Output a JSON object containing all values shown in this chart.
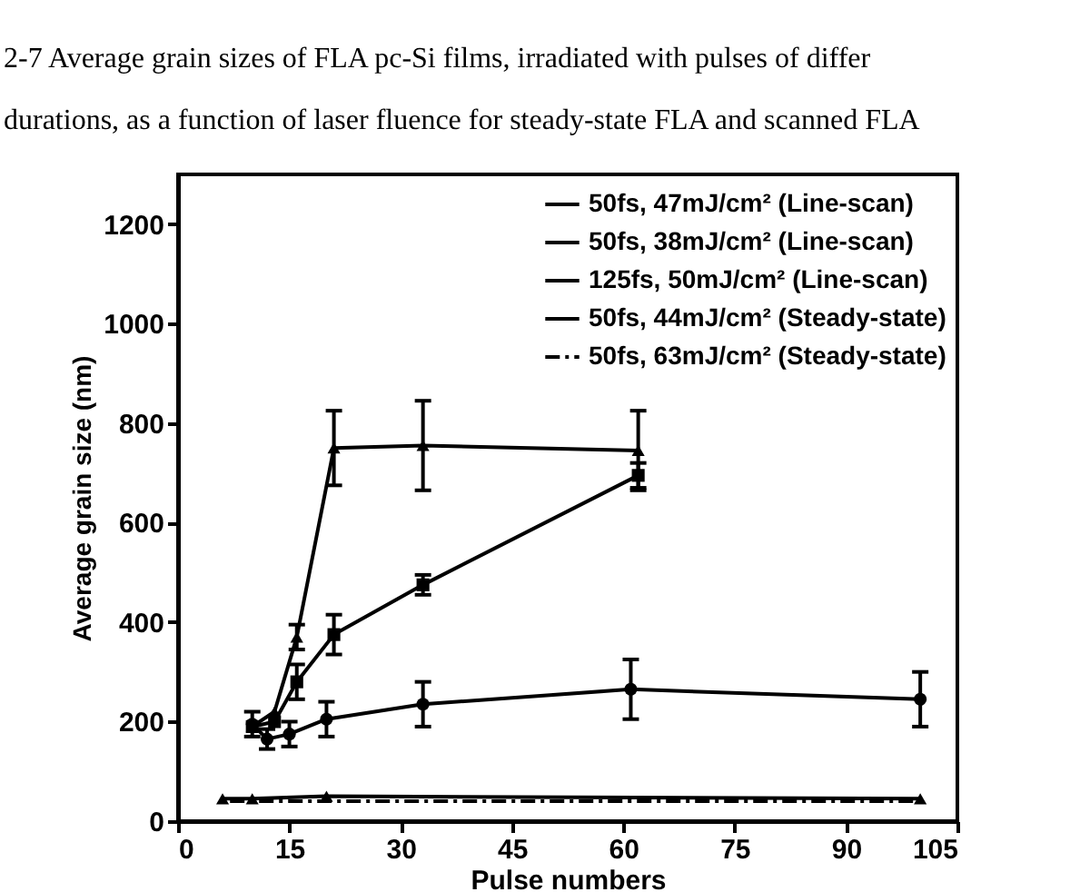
{
  "chart_data": {
    "type": "line",
    "title": "2-7 Average grain sizes of FLA pc-Si films, irradiated with pulses of differ\ndurations, as a function of laser fluence for steady-state FLA and scanned FLA",
    "xlabel": "Pulse numbers",
    "ylabel": "Average grain size (nm)",
    "xlim": [
      0,
      105
    ],
    "ylim": [
      0,
      1300
    ],
    "xticks": [
      0,
      15,
      30,
      45,
      60,
      75,
      90,
      105
    ],
    "yticks": [
      0,
      200,
      400,
      600,
      800,
      1000,
      1200
    ],
    "legend": "top right",
    "series": [
      {
        "name": "50fs, 47mJ/cm² (Line-scan)",
        "color": "#000000",
        "marker": "triangle",
        "line_style": "solid",
        "x": [
          10,
          13,
          16,
          21,
          33,
          62
        ],
        "values": [
          190,
          220,
          370,
          750,
          755,
          745
        ],
        "errors": [
          null,
          null,
          25,
          75,
          90,
          80
        ]
      },
      {
        "name": "50fs, 38mJ/cm² (Line-scan)",
        "color": "#000000",
        "marker": "square",
        "line_style": "solid",
        "x": [
          10,
          13,
          16,
          21,
          33,
          62
        ],
        "values": [
          190,
          200,
          280,
          375,
          475,
          695
        ],
        "errors": [
          null,
          null,
          35,
          40,
          20,
          25
        ]
      },
      {
        "name": "125fs, 50mJ/cm² (Line-scan)",
        "color": "#000000",
        "marker": "circle",
        "line_style": "solid",
        "x": [
          10,
          12,
          15,
          20,
          33,
          61,
          100
        ],
        "values": [
          195,
          165,
          175,
          205,
          235,
          265,
          245
        ],
        "errors": [
          25,
          20,
          25,
          35,
          45,
          60,
          55
        ]
      },
      {
        "name": "50fs, 44mJ/cm² (Steady-state)",
        "color": "#000000",
        "marker": "triangle",
        "line_style": "solid",
        "x": [
          6,
          10,
          20,
          100
        ],
        "values": [
          45,
          45,
          50,
          45
        ]
      },
      {
        "name": "50fs, 63mJ/cm² (Steady-state)",
        "color": "#000000",
        "marker": "none",
        "line_style": "dashed",
        "x": [
          7,
          100
        ],
        "values": [
          40,
          40
        ]
      }
    ]
  }
}
